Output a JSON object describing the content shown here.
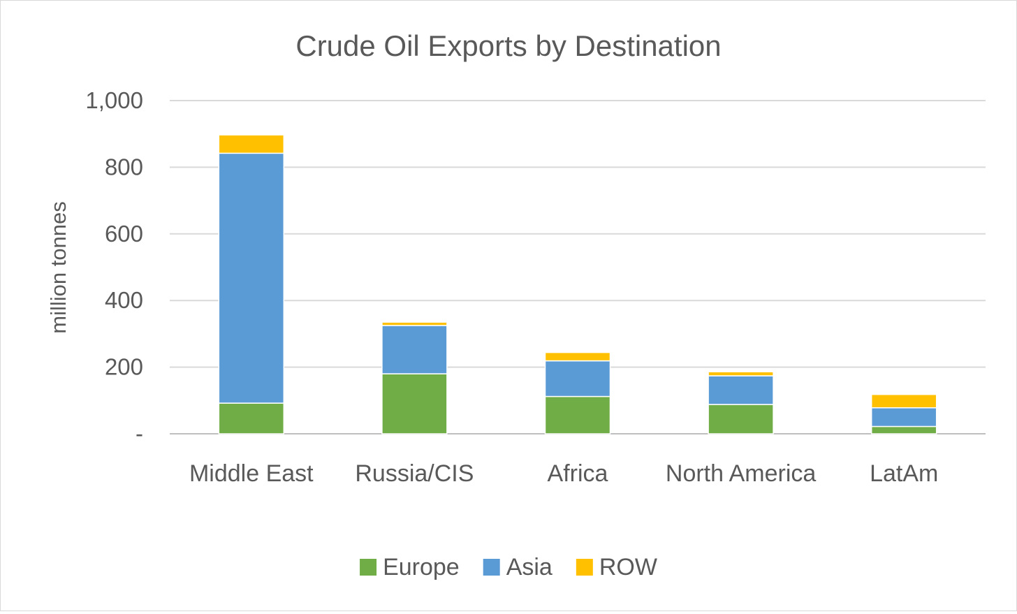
{
  "chart_data": {
    "type": "bar",
    "stacked": true,
    "title": "Crude Oil Exports by Destination",
    "xlabel": "",
    "ylabel": "million tonnes",
    "categories": [
      "Middle East",
      "Russia/CIS",
      "Africa",
      "North America",
      "LatAm"
    ],
    "series": [
      {
        "name": "Europe",
        "color": "#70ad47",
        "values": [
          92,
          180,
          112,
          88,
          22
        ]
      },
      {
        "name": "Asia",
        "color": "#5b9bd5",
        "values": [
          750,
          145,
          107,
          86,
          56
        ]
      },
      {
        "name": "ROW",
        "color": "#ffc000",
        "values": [
          55,
          10,
          25,
          12,
          40
        ]
      }
    ],
    "ylim": [
      0,
      1000
    ],
    "yticks": [
      0,
      200,
      400,
      600,
      800,
      1000
    ],
    "ytick_labels": [
      "-",
      "200",
      "400",
      "600",
      "800",
      "1,000"
    ],
    "grid": true,
    "legend_position": "bottom"
  }
}
